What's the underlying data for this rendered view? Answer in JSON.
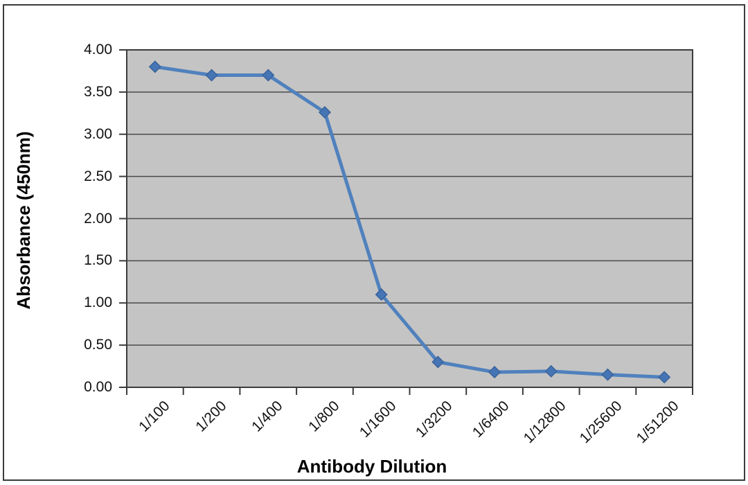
{
  "chart_data": {
    "type": "line",
    "title": "",
    "xlabel": "Antibody Dilution",
    "ylabel": "Absorbance (450nm)",
    "categories": [
      "1/100",
      "1/200",
      "1/400",
      "1/800",
      "1/1600",
      "1/3200",
      "1/6400",
      "1/12800",
      "1/25600",
      "1/51200"
    ],
    "series": [
      {
        "name": "Absorbance (450nm)",
        "values": [
          3.8,
          3.7,
          3.7,
          3.26,
          1.1,
          0.3,
          0.18,
          0.19,
          0.15,
          0.12
        ]
      }
    ],
    "ylim": [
      0,
      4
    ],
    "ytick_step": 0.5,
    "ytick_labels": [
      "4.00",
      "3.50",
      "3.00",
      "2.50",
      "2.00",
      "1.50",
      "1.00",
      "0.50",
      "0.00"
    ],
    "grid": "horizontal",
    "legend": "none",
    "marker_shape": "diamond",
    "colors": {
      "line": "#5081BD",
      "marker_fill": "#4575B5",
      "marker_stroke": "#3A639B",
      "plot_bg": "#C4C4C4",
      "gridline": "#4A4A4A",
      "plot_border": "#3B3B3B",
      "frame_border": "#3B3B3B",
      "text": "#000000"
    }
  }
}
